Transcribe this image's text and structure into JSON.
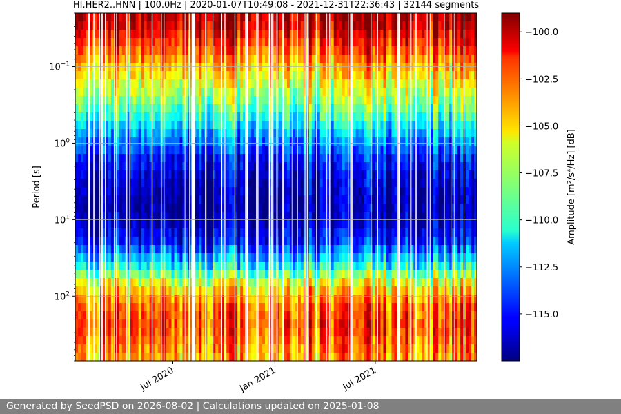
{
  "chart_data": {
    "type": "heatmap",
    "title": "HI.HER2..HNN | 100.0Hz | 2020-01-07T10:49:08 - 2021-12-31T22:36:43 | 32144 segments",
    "xlabel": "",
    "ylabel": "Period [s]",
    "y_scale": "log",
    "ylim": [
      0.02,
      700
    ],
    "y_ticks": [
      {
        "value": 0.1,
        "base": "10",
        "exp": "−1"
      },
      {
        "value": 1,
        "base": "10",
        "exp": "0"
      },
      {
        "value": 10,
        "base": "10",
        "exp": "1"
      },
      {
        "value": 100,
        "base": "10",
        "exp": "2"
      }
    ],
    "x_range": [
      "2020-01-07",
      "2021-12-31"
    ],
    "x_ticks": [
      {
        "date": "2020-07-01",
        "label": "Jul 2020"
      },
      {
        "date": "2021-01-01",
        "label": "Jan 2021"
      },
      {
        "date": "2021-07-01",
        "label": "Jul 2021"
      }
    ],
    "grid": true,
    "colormap": "jet",
    "colorbar": {
      "label": "Amplitude [m²/s⁴/Hz] [dB]",
      "range": [
        -117.5,
        -99
      ],
      "ticks": [
        {
          "value": -100.0,
          "label": "−100.0"
        },
        {
          "value": -102.5,
          "label": "−102.5"
        },
        {
          "value": -105.0,
          "label": "−105.0"
        },
        {
          "value": -107.5,
          "label": "−107.5"
        },
        {
          "value": -110.0,
          "label": "−110.0"
        },
        {
          "value": -112.5,
          "label": "−112.5"
        },
        {
          "value": -115.0,
          "label": "−115.0"
        }
      ]
    },
    "profile_db": [
      {
        "period": 0.02,
        "db": -99.8
      },
      {
        "period": 0.03,
        "db": -100.5
      },
      {
        "period": 0.05,
        "db": -102.2
      },
      {
        "period": 0.1,
        "db": -104.8
      },
      {
        "period": 0.2,
        "db": -107.0
      },
      {
        "period": 0.4,
        "db": -109.5
      },
      {
        "period": 0.8,
        "db": -112.3
      },
      {
        "period": 1.5,
        "db": -114.8
      },
      {
        "period": 3,
        "db": -116.2
      },
      {
        "period": 6,
        "db": -117.0
      },
      {
        "period": 10,
        "db": -116.6
      },
      {
        "period": 20,
        "db": -114.8
      },
      {
        "period": 40,
        "db": -110.5
      },
      {
        "period": 70,
        "db": -106.0
      },
      {
        "period": 120,
        "db": -103.5
      },
      {
        "period": 250,
        "db": -102.5
      },
      {
        "period": 700,
        "db": -104.5
      }
    ],
    "gaps": [
      "2020-08-05",
      "2020-08-07",
      "2020-08-09",
      "2020-02-01",
      "2021-05-18",
      "2020-11-12",
      "2021-09-03"
    ]
  },
  "footer": {
    "text": "Generated by SeedPSD on 2026-08-02 | Calculations updated on 2025-01-08"
  }
}
